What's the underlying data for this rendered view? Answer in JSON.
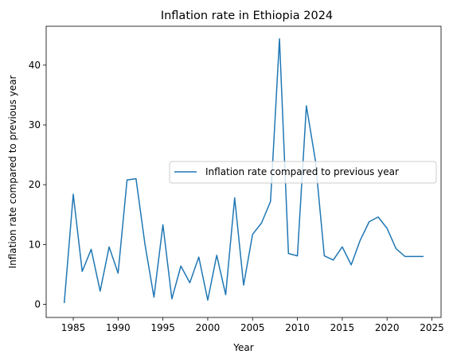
{
  "chart_data": {
    "type": "line",
    "title": "Inflation rate in Ethiopia 2024",
    "xlabel": "Year",
    "ylabel": "Inflation rate compared to previous year",
    "xlim": [
      1981.98,
      2026.02
    ],
    "ylim": [
      -2.2,
      46.5
    ],
    "xticks": [
      1985,
      1990,
      1995,
      2000,
      2005,
      2010,
      2015,
      2020,
      2025
    ],
    "yticks": [
      0,
      10,
      20,
      30,
      40
    ],
    "grid": false,
    "legend_position": "center-right",
    "series": [
      {
        "name": "Inflation rate compared to previous year",
        "color": "#1f77b4",
        "x": [
          1984,
          1985,
          1986,
          1987,
          1988,
          1989,
          1990,
          1991,
          1992,
          1993,
          1994,
          1995,
          1996,
          1997,
          1998,
          1999,
          2000,
          2001,
          2002,
          2003,
          2004,
          2005,
          2006,
          2007,
          2008,
          2009,
          2010,
          2011,
          2012,
          2013,
          2014,
          2015,
          2016,
          2017,
          2018,
          2019,
          2020,
          2021,
          2022,
          2023,
          2024
        ],
        "values": [
          0.3,
          18.4,
          5.5,
          9.2,
          2.2,
          9.6,
          5.2,
          20.8,
          21.0,
          10.0,
          1.2,
          13.3,
          0.9,
          6.4,
          3.6,
          7.9,
          0.7,
          8.2,
          1.6,
          17.8,
          3.2,
          11.7,
          13.6,
          17.2,
          44.4,
          8.5,
          8.1,
          33.2,
          24.1,
          8.1,
          7.4,
          9.6,
          6.6,
          10.7,
          13.8,
          14.6,
          12.7,
          9.3,
          8.0,
          8.0,
          8.0
        ]
      }
    ]
  }
}
